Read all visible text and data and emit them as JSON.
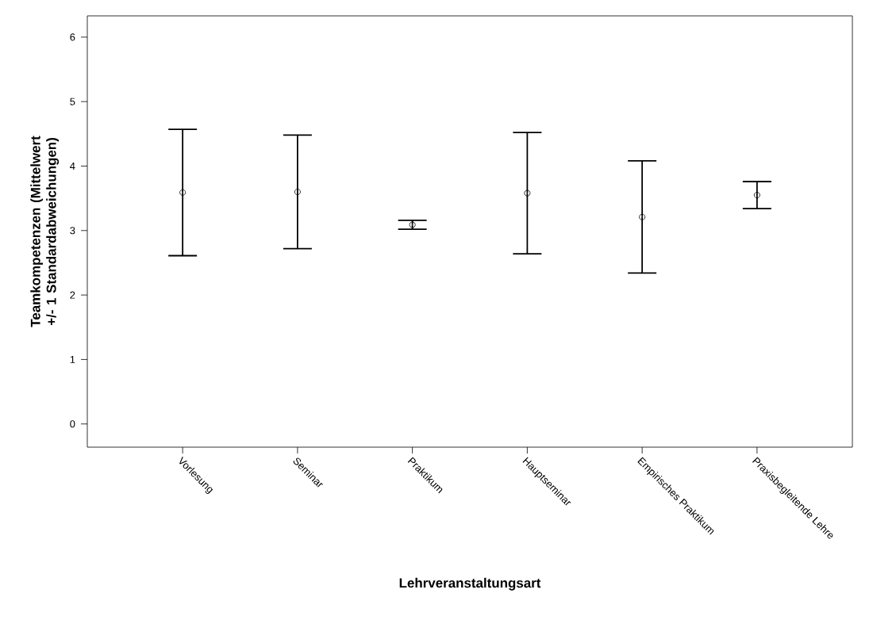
{
  "chart_data": {
    "type": "scatter",
    "xlabel": "Lehrveranstaltungsart",
    "ylabel": "Teamkompetenzen (Mittelwert +/- 1 Standardabweichungen)",
    "categories": [
      "Vorlesung",
      "Seminar",
      "Praktikum",
      "Hauptseminar",
      "Empirisches Praktikum",
      "Praxisbegleitende Lehre"
    ],
    "values": [
      3.59,
      3.6,
      3.09,
      3.58,
      3.21,
      3.55
    ],
    "errors": [
      0.98,
      0.88,
      0.07,
      0.94,
      0.87,
      0.21
    ],
    "color": "#000000",
    "marker": "circle",
    "ylim": [
      -0.36,
      6.33
    ],
    "yticks": [
      0,
      1,
      2,
      3,
      4,
      5,
      6
    ]
  }
}
